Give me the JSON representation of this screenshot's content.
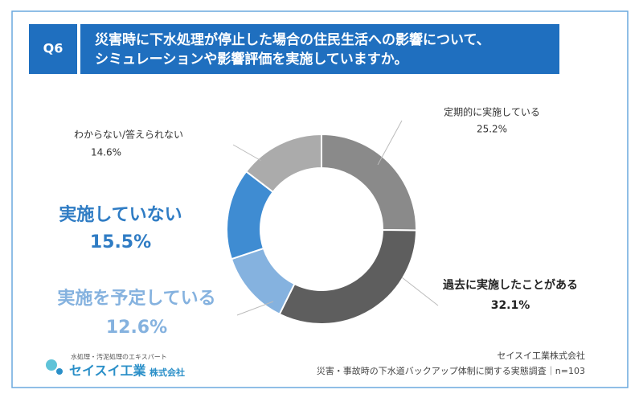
{
  "chart_data": {
    "type": "donut",
    "question": "Q6",
    "title": [
      "災害時に下水処理が停止した場合の住民生活への影響について、",
      "シミュレーションや影響評価を実施していますか。"
    ],
    "categories": [
      "定期的に実施している",
      "過去に実施したことがある",
      "実施を予定している",
      "実施していない",
      "わからない/答えられない"
    ],
    "values": [
      25.2,
      32.1,
      12.6,
      15.5,
      14.6
    ],
    "value_labels": [
      "25.2%",
      "32.1%",
      "12.6%",
      "15.5%",
      "14.6%"
    ],
    "colors": [
      "#8a8a8a",
      "#5e5e5e",
      "#85b2df",
      "#3f8cd2",
      "#ababab"
    ],
    "label_colors": [
      "#333333",
      "#222222",
      "#85b2df",
      "#2f7cc4",
      "#333333"
    ],
    "logo": {
      "tagline": "水処理・汚泥処理のエキスパート",
      "name": "セイスイ工業",
      "suffix": "株式会社"
    },
    "source": [
      "セイスイ工業株式会社",
      "災害・事故時の下水道バックアップ体制に関する実態調査｜n=103"
    ]
  }
}
